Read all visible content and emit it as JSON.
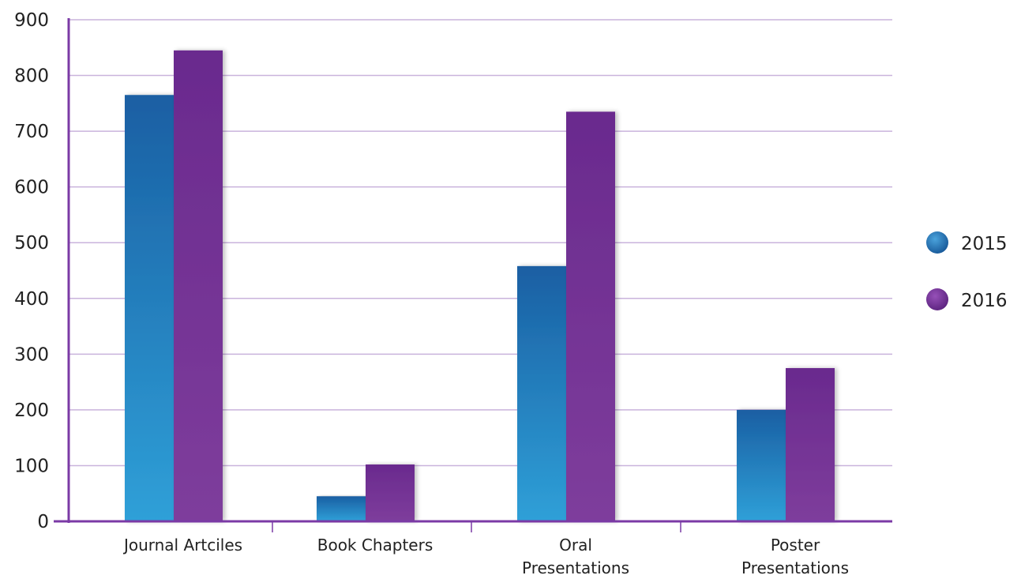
{
  "chart_data": {
    "type": "bar",
    "title": "",
    "xlabel": "",
    "ylabel": "",
    "ylim": [
      0,
      900
    ],
    "yticks": [
      0,
      100,
      200,
      300,
      400,
      500,
      600,
      700,
      800,
      900
    ],
    "grid": true,
    "legend_position": "right",
    "categories": [
      [
        "Journal Artciles"
      ],
      [
        "Book Chapters"
      ],
      [
        "Oral",
        "Presentations"
      ],
      [
        "Poster",
        "Presentations"
      ]
    ],
    "series": [
      {
        "name": "2015",
        "color": "#1f6fb0",
        "values": [
          765,
          45,
          458,
          200
        ]
      },
      {
        "name": "2016",
        "color": "#6e2c92",
        "values": [
          845,
          102,
          735,
          275
        ]
      }
    ],
    "axis_color": "#7b3aa6",
    "grid_color": "#c9b3dc"
  }
}
